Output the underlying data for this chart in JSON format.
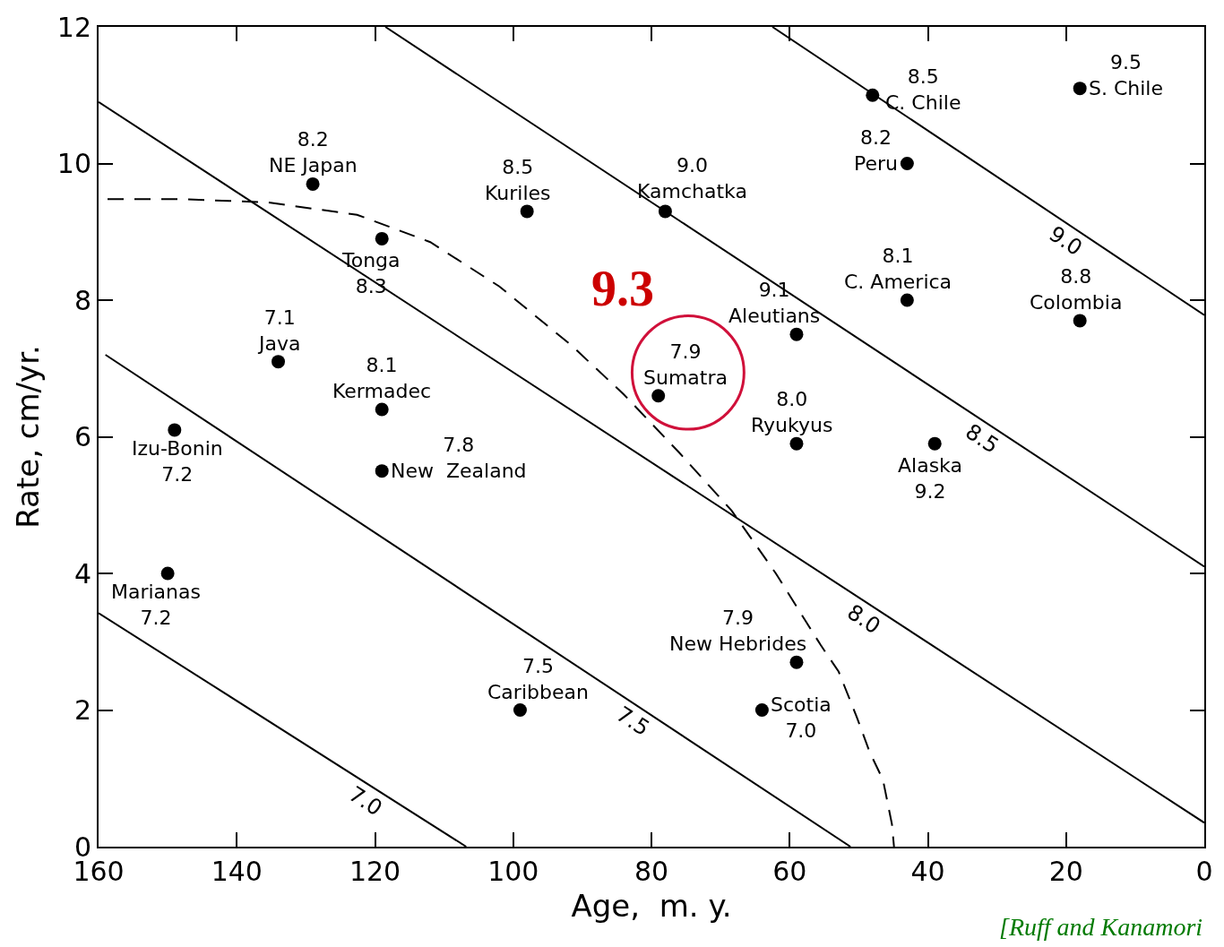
{
  "chart_data": {
    "type": "scatter",
    "xlabel": "Age,  m. y.",
    "ylabel": "Rate, cm/yr.",
    "xlim": [
      160,
      0
    ],
    "xticks": [
      160,
      140,
      120,
      100,
      80,
      60,
      40,
      20,
      0
    ],
    "ylim": [
      0,
      12
    ],
    "yticks": [
      0,
      2,
      4,
      6,
      8,
      10,
      12
    ],
    "legend": false,
    "series": [
      {
        "color": "#000000",
        "marker": "circle",
        "x": [
          129,
          119,
          98,
          78,
          48,
          18,
          43,
          43,
          18,
          59,
          79,
          59,
          39,
          134,
          119,
          119,
          149,
          150,
          99,
          59,
          64
        ],
        "values": [
          9.7,
          8.9,
          9.3,
          9.3,
          11.0,
          11.1,
          10.0,
          8.0,
          7.7,
          7.5,
          6.6,
          5.9,
          5.9,
          7.1,
          6.4,
          5.5,
          6.1,
          4.0,
          2.0,
          2.7,
          2.0
        ]
      },
      {
        "type": "line",
        "name": "7.0",
        "color": "#000000",
        "line_style": "solid",
        "marker": "none",
        "x": [
          160,
          106.8
        ],
        "values": [
          3.42,
          0
        ]
      },
      {
        "type": "line",
        "name": "7.5",
        "color": "#000000",
        "line_style": "solid",
        "marker": "none",
        "x": [
          159,
          51.2
        ],
        "values": [
          7.2,
          0
        ]
      },
      {
        "type": "line",
        "name": "8.0",
        "color": "#000000",
        "line_style": "solid",
        "marker": "none",
        "x": [
          160,
          0
        ],
        "values": [
          10.9,
          0.35
        ]
      },
      {
        "type": "line",
        "name": "8.5",
        "color": "#000000",
        "line_style": "solid",
        "marker": "none",
        "x": [
          118.5,
          0
        ],
        "values": [
          12,
          4.1
        ]
      },
      {
        "type": "line",
        "name": "9.0",
        "color": "#000000",
        "line_style": "solid",
        "marker": "none",
        "x": [
          62.5,
          0
        ],
        "values": [
          12,
          7.78
        ]
      },
      {
        "type": "line",
        "color": "#000000",
        "line_style": "dashed",
        "marker": "none",
        "x": [
          158.7,
          148,
          135.5,
          122.6,
          112,
          102,
          91.6,
          84,
          76,
          68.4,
          62,
          55.5,
          52.9,
          50.3,
          48.4,
          46.5,
          45.2,
          44.9
        ],
        "values": [
          9.48,
          9.48,
          9.43,
          9.25,
          8.85,
          8.2,
          7.34,
          6.62,
          5.77,
          4.92,
          4.0,
          2.95,
          2.56,
          1.9,
          1.38,
          0.98,
          0.33,
          0
        ]
      }
    ],
    "annotations": [
      {
        "text": "8.2\nNE Japan",
        "x": 129,
        "y": 9.7
      },
      {
        "text": "Tonga\n8.3",
        "x": 119,
        "y": 8.9
      },
      {
        "text": "8.5\nKuriles",
        "x": 98,
        "y": 9.3
      },
      {
        "text": "9.0\nKamchatka",
        "x": 78,
        "y": 9.3
      },
      {
        "text": "8.5\nC. Chile",
        "x": 48,
        "y": 11.0
      },
      {
        "text": "9.5\nS. Chile",
        "x": 18,
        "y": 11.1
      },
      {
        "text": "8.2\nPeru",
        "x": 43,
        "y": 10.0
      },
      {
        "text": "8.1\nC. America",
        "x": 43,
        "y": 8.0
      },
      {
        "text": "8.8\nColombia",
        "x": 18,
        "y": 7.7
      },
      {
        "text": "9.1\nAleutians",
        "x": 59,
        "y": 7.5
      },
      {
        "text": "7.9\nSumatra",
        "x": 79,
        "y": 6.6
      },
      {
        "text": "8.0\nRyukyus",
        "x": 59,
        "y": 5.9
      },
      {
        "text": "Alaska\n9.2",
        "x": 39,
        "y": 5.9
      },
      {
        "text": "7.1\nJava",
        "x": 134,
        "y": 7.1
      },
      {
        "text": "8.1\nKermadec",
        "x": 119,
        "y": 6.4
      },
      {
        "text": "7.8\nNew  Zealand",
        "x": 119,
        "y": 5.5
      },
      {
        "text": "Izu-Bonin\n7.2",
        "x": 149,
        "y": 6.1
      },
      {
        "text": "Marianas\n7.2",
        "x": 150,
        "y": 4.0
      },
      {
        "text": "7.5\nCaribbean",
        "x": 99,
        "y": 2.0
      },
      {
        "text": "7.9\nNew Hebrides",
        "x": 59,
        "y": 2.7
      },
      {
        "text": "Scotia\n7.0",
        "x": 64,
        "y": 2.0
      },
      "9.3",
      "[Ruff and Kanamori"
    ]
  }
}
